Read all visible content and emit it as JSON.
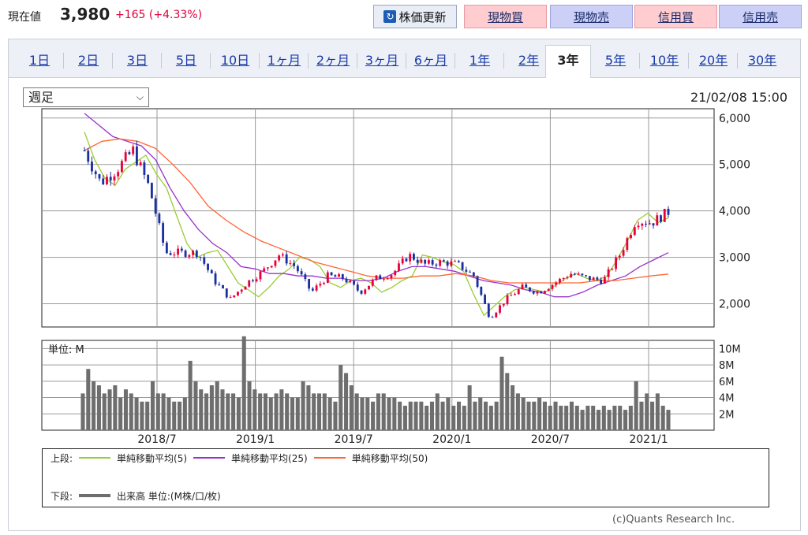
{
  "header": {
    "price_label": "現在値",
    "price_value": "3,980",
    "price_change": "+165 (+4.33%)",
    "refresh_label": "株価更新",
    "trade_buttons": [
      "現物買",
      "現物売",
      "信用買",
      "信用売"
    ]
  },
  "tabs": [
    "1日",
    "2日",
    "3日",
    "5日",
    "10日",
    "1ヶ月",
    "2ヶ月",
    "3ヶ月",
    "6ヶ月",
    "1年",
    "2年",
    "3年",
    "5年",
    "10年",
    "20年",
    "30年"
  ],
  "active_tab": "3年",
  "interval_select": "週足",
  "timestamp": "21/02/08 15:00",
  "colors": {
    "up": "#e8003c",
    "down": "#1a2fa0",
    "ma5": "#9acd32",
    "ma25": "#9932cc",
    "ma50": "#ff6633",
    "volume": "#6e6e6e"
  },
  "chart_data": [
    {
      "type": "candlestick",
      "title": "",
      "x_tick_labels": [
        "2018/7",
        "2019/1",
        "2019/7",
        "2020/1",
        "2020/7",
        "2021/1"
      ],
      "y_tick_labels": [
        "6,000",
        "5,000",
        "4,000",
        "3,000",
        "2,000"
      ],
      "ylim": [
        1500,
        6200
      ],
      "grid": true,
      "close_anchors": [
        [
          "2018/02",
          5300
        ],
        [
          "2018/03",
          4600
        ],
        [
          "2018/04",
          4900
        ],
        [
          "2018/05",
          5300
        ],
        [
          "2018/06",
          4500
        ],
        [
          "2018/07",
          3100
        ],
        [
          "2018/08",
          3100
        ],
        [
          "2018/09",
          3100
        ],
        [
          "2018/10",
          2500
        ],
        [
          "2018/11",
          2100
        ],
        [
          "2018/12",
          2450
        ],
        [
          "2019/01",
          2700
        ],
        [
          "2019/02",
          3050
        ],
        [
          "2019/03",
          2800
        ],
        [
          "2019/04",
          2250
        ],
        [
          "2019/05",
          2600
        ],
        [
          "2019/06",
          2550
        ],
        [
          "2019/07",
          2250
        ],
        [
          "2019/08",
          2550
        ],
        [
          "2019/09",
          2650
        ],
        [
          "2019/10",
          3050
        ],
        [
          "2019/11",
          2850
        ],
        [
          "2019/12",
          2900
        ],
        [
          "2020/01",
          2850
        ],
        [
          "2020/02",
          2600
        ],
        [
          "2020/03",
          1700
        ],
        [
          "2020/04",
          2100
        ],
        [
          "2020/05",
          2350
        ],
        [
          "2020/06",
          2250
        ],
        [
          "2020/07",
          2450
        ],
        [
          "2020/08",
          2650
        ],
        [
          "2020/09",
          2550
        ],
        [
          "2020/10",
          2500
        ],
        [
          "2020/11",
          3050
        ],
        [
          "2020/12",
          3800
        ],
        [
          "2021/01",
          3750
        ],
        [
          "2021/02",
          3980
        ]
      ],
      "series": [
        {
          "name": "単純移動平均(5)",
          "values": [
            [
              5700,
              5100
            ],
            [
              4700,
              4550
            ],
            [
              4900,
              5050
            ],
            [
              5200,
              4800
            ],
            [
              4500,
              3900
            ],
            [
              3300,
              3000
            ],
            [
              3100,
              3150
            ],
            [
              2800,
              2450
            ],
            [
              2300,
              2150
            ],
            [
              2350,
              2600
            ],
            [
              2750,
              3000
            ],
            [
              2950,
              2800
            ],
            [
              2450,
              2350
            ],
            [
              2500,
              2550
            ],
            [
              2450,
              2250
            ],
            [
              2350,
              2500
            ],
            [
              2600,
              3050
            ],
            [
              3000,
              2900
            ],
            [
              2850,
              2700
            ],
            [
              2200,
              1750
            ],
            [
              1950,
              2150
            ],
            [
              2300,
              2350
            ],
            [
              2300,
              2250
            ],
            [
              2400,
              2550
            ],
            [
              2650,
              2550
            ],
            [
              2500,
              2600
            ],
            [
              2950,
              3350
            ],
            [
              3800,
              3950
            ],
            [
              3750,
              3850
            ]
          ]
        },
        {
          "name": "単純移動平均(25)",
          "values": [
            [
              6100,
              5850
            ],
            [
              5600,
              5500
            ],
            [
              5400,
              5100
            ],
            [
              4500,
              4000
            ],
            [
              3600,
              3300
            ],
            [
              3100,
              2800
            ],
            [
              2750,
              2650
            ],
            [
              2650,
              2600
            ],
            [
              2600,
              2550
            ],
            [
              2550,
              2500
            ],
            [
              2500,
              2550
            ],
            [
              2700,
              2800
            ],
            [
              2800,
              2750
            ],
            [
              2700,
              2600
            ],
            [
              2500,
              2450
            ],
            [
              2400,
              2300
            ],
            [
              2250,
              2150
            ],
            [
              2150,
              2250
            ],
            [
              2400,
              2500
            ],
            [
              2600,
              2800
            ],
            [
              2950,
              3100
            ]
          ]
        },
        {
          "name": "単純移動平均(50)",
          "values": [
            [
              5300,
              5500
            ],
            [
              5550,
              5500
            ],
            [
              5350,
              5000
            ],
            [
              4600,
              4100
            ],
            [
              3800,
              3550
            ],
            [
              3350,
              3200
            ],
            [
              3050,
              2900
            ],
            [
              2800,
              2700
            ],
            [
              2600,
              2550
            ],
            [
              2550,
              2600
            ],
            [
              2600,
              2650
            ],
            [
              2600,
              2500
            ],
            [
              2450,
              2450
            ],
            [
              2450,
              2450
            ],
            [
              2450,
              2500
            ],
            [
              2500,
              2550
            ],
            [
              2600,
              2640
            ]
          ]
        }
      ]
    },
    {
      "type": "bar",
      "title": "",
      "unit_label": "単位: M",
      "y_tick_labels": [
        "10M",
        "8M",
        "6M",
        "4M",
        "2M"
      ],
      "ylim": [
        0,
        11
      ],
      "values": [
        4.5,
        7.5,
        6,
        5.5,
        4.5,
        5,
        5.5,
        4,
        5,
        4.5,
        4,
        3.5,
        3.5,
        6,
        4.5,
        4.5,
        4,
        3.5,
        3.5,
        4,
        8.5,
        6,
        5,
        4.5,
        5.5,
        6,
        5,
        4.5,
        4.5,
        4,
        11.5,
        6,
        5,
        4.5,
        4.5,
        4,
        4.5,
        5,
        4.5,
        4,
        4,
        6,
        5.5,
        4.5,
        4.5,
        4.5,
        4,
        3.5,
        8,
        7,
        5.5,
        4.5,
        4,
        4,
        3.5,
        4.5,
        4.5,
        4,
        4,
        3.5,
        3,
        3.5,
        3.5,
        3.5,
        3,
        3.5,
        4.5,
        3.5,
        4,
        3,
        3.5,
        3,
        5.5,
        3.5,
        4,
        3.5,
        3,
        3.5,
        9,
        7,
        5.5,
        4.5,
        4,
        3.5,
        3.5,
        4,
        3.5,
        3,
        3.5,
        3,
        3,
        3.5,
        3,
        2.5,
        3,
        3,
        2.5,
        3,
        2.5,
        3,
        3,
        2.5,
        3,
        6,
        3.5,
        4.5,
        3.5,
        4.5,
        3,
        2.5
      ]
    }
  ],
  "legend": {
    "upper_label": "上段:",
    "lower_label": "下段:",
    "volume_label": "出来高 単位:(M株/口/枚)"
  },
  "credit": "(c)Quants Research Inc."
}
